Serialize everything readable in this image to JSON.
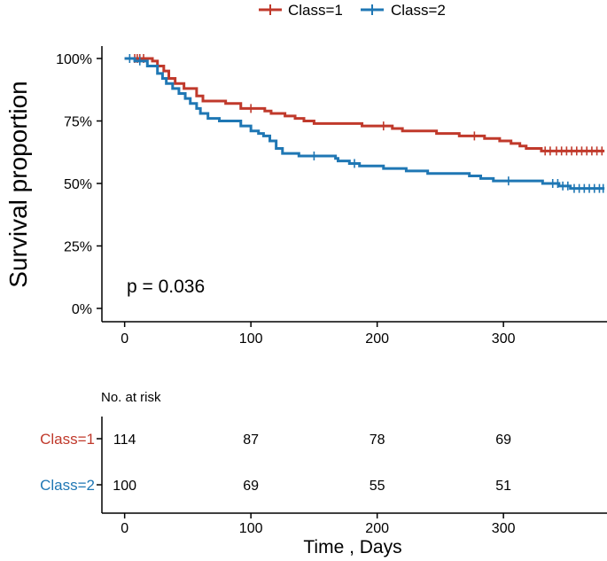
{
  "chart_data": {
    "type": "line",
    "subtype": "kaplan-meier",
    "ylabel": "Survival proportion",
    "xlabel": "Time , Days",
    "xlim": [
      -18,
      382
    ],
    "ylim": [
      0,
      1
    ],
    "x_ticks": [
      0,
      100,
      200,
      300
    ],
    "x_tick_labels": [
      "0",
      "100",
      "200",
      "300"
    ],
    "y_ticks": [
      0,
      0.25,
      0.5,
      0.75,
      1.0
    ],
    "y_tick_labels": [
      "0%",
      "25%",
      "50%",
      "75%",
      "100%"
    ],
    "annotation": "p = 0.036",
    "legend": {
      "position": "top",
      "entries": [
        "Class=1",
        "Class=2"
      ]
    },
    "series": [
      {
        "name": "Class=1",
        "color": "#C0392B",
        "steps": [
          [
            0,
            1.0
          ],
          [
            22,
            0.99
          ],
          [
            26,
            0.97
          ],
          [
            31,
            0.95
          ],
          [
            35,
            0.92
          ],
          [
            40,
            0.9
          ],
          [
            47,
            0.88
          ],
          [
            57,
            0.85
          ],
          [
            62,
            0.83
          ],
          [
            80,
            0.82
          ],
          [
            92,
            0.8
          ],
          [
            111,
            0.79
          ],
          [
            116,
            0.78
          ],
          [
            127,
            0.77
          ],
          [
            135,
            0.76
          ],
          [
            142,
            0.75
          ],
          [
            150,
            0.74
          ],
          [
            188,
            0.73
          ],
          [
            212,
            0.72
          ],
          [
            220,
            0.71
          ],
          [
            247,
            0.7
          ],
          [
            265,
            0.69
          ],
          [
            274,
            0.69
          ],
          [
            285,
            0.68
          ],
          [
            297,
            0.67
          ],
          [
            306,
            0.66
          ],
          [
            313,
            0.65
          ],
          [
            318,
            0.64
          ],
          [
            330,
            0.63
          ],
          [
            380,
            0.63
          ]
        ],
        "censor_times": [
          8,
          10,
          12,
          15,
          100,
          205,
          277,
          333,
          337,
          342,
          346,
          350,
          354,
          358,
          362,
          366,
          370,
          374,
          378
        ]
      },
      {
        "name": "Class=2",
        "color": "#1F77B4",
        "steps": [
          [
            0,
            1.0
          ],
          [
            8,
            0.99
          ],
          [
            18,
            0.97
          ],
          [
            26,
            0.94
          ],
          [
            30,
            0.92
          ],
          [
            33,
            0.9
          ],
          [
            38,
            0.88
          ],
          [
            43,
            0.86
          ],
          [
            48,
            0.84
          ],
          [
            52,
            0.82
          ],
          [
            57,
            0.8
          ],
          [
            60,
            0.78
          ],
          [
            66,
            0.76
          ],
          [
            75,
            0.75
          ],
          [
            92,
            0.73
          ],
          [
            100,
            0.71
          ],
          [
            106,
            0.7
          ],
          [
            110,
            0.69
          ],
          [
            115,
            0.67
          ],
          [
            120,
            0.64
          ],
          [
            125,
            0.62
          ],
          [
            138,
            0.61
          ],
          [
            167,
            0.6
          ],
          [
            169,
            0.59
          ],
          [
            178,
            0.58
          ],
          [
            186,
            0.57
          ],
          [
            205,
            0.56
          ],
          [
            223,
            0.55
          ],
          [
            230,
            0.55
          ],
          [
            240,
            0.54
          ],
          [
            262,
            0.54
          ],
          [
            273,
            0.53
          ],
          [
            282,
            0.52
          ],
          [
            292,
            0.51
          ],
          [
            325,
            0.51
          ],
          [
            331,
            0.5
          ],
          [
            338,
            0.5
          ],
          [
            344,
            0.49
          ],
          [
            353,
            0.48
          ],
          [
            380,
            0.48
          ]
        ],
        "censor_times": [
          4,
          12,
          150,
          182,
          304,
          339,
          343,
          347,
          351,
          356,
          360,
          364,
          368,
          372,
          376,
          379
        ]
      }
    ],
    "risk_table": {
      "title": "No. at risk",
      "times": [
        0,
        100,
        200,
        300
      ],
      "rows": [
        {
          "group": "Class=1",
          "counts": [
            "114",
            "87",
            "78",
            "69"
          ]
        },
        {
          "group": "Class=2",
          "counts": [
            "100",
            "69",
            "55",
            "51"
          ]
        }
      ]
    }
  }
}
